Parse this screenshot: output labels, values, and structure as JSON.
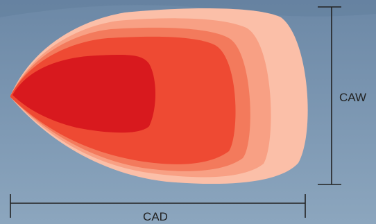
{
  "labels": {
    "width": "CAW",
    "depth": "CAD"
  },
  "colors": {
    "sky_top": "#6c88a6",
    "sky_bottom": "#8ca6be",
    "zone_outer": "#fbbfa8",
    "zone_2": "#f8a084",
    "zone_3": "#f37a5c",
    "zone_4": "#ee4a33",
    "zone_core": "#d8191e",
    "dimension_line": "#222222"
  }
}
